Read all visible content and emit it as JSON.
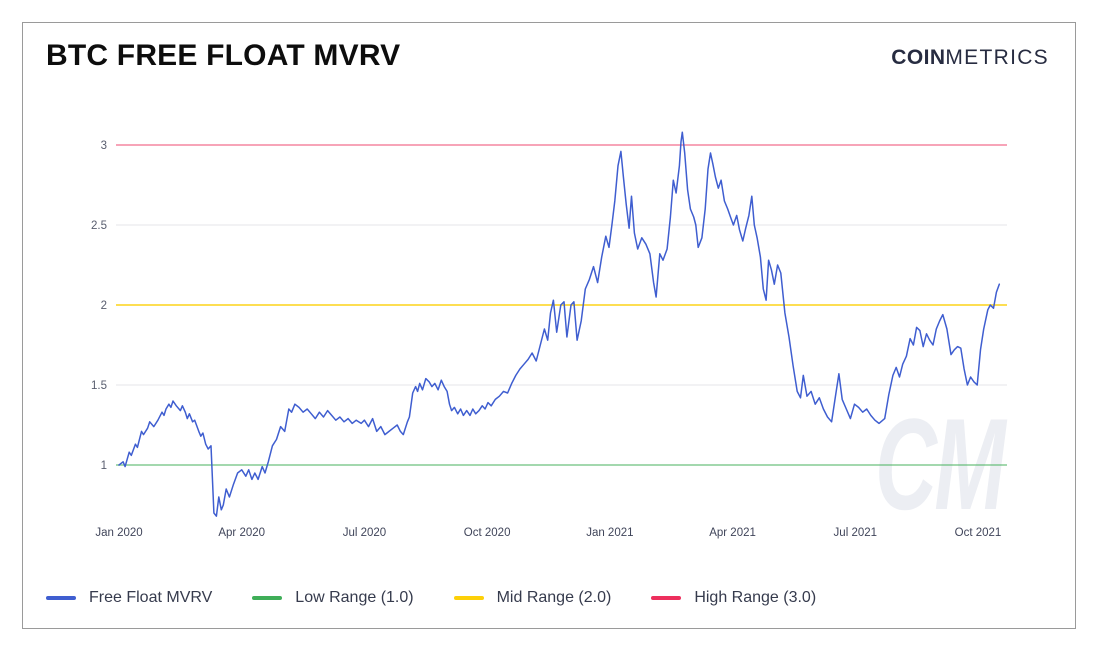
{
  "header": {
    "title": "BTC FREE FLOAT MVRV",
    "brand": {
      "bold": "COIN",
      "light": "METRICS"
    }
  },
  "watermark": "CM",
  "legend": {
    "items": [
      {
        "label": "Free Float MVRV",
        "color": "#3f5ed0"
      },
      {
        "label": "Low Range (1.0)",
        "color": "#3fae58"
      },
      {
        "label": "Mid Range (2.0)",
        "color": "#fdd008"
      },
      {
        "label": "High Range (3.0)",
        "color": "#ed2f5d"
      }
    ]
  },
  "chart_data": {
    "type": "line",
    "title": "BTC FREE FLOAT MVRV",
    "xlabel": "",
    "ylabel": "",
    "grid": "horizontal",
    "legend_position": "bottom",
    "x_axis": {
      "unit": "months since Jan 2020",
      "range": [
        0,
        21.6
      ],
      "ticks": [
        {
          "t": 0,
          "label": "Jan 2020"
        },
        {
          "t": 3,
          "label": "Apr 2020"
        },
        {
          "t": 6,
          "label": "Jul 2020"
        },
        {
          "t": 9,
          "label": "Oct 2020"
        },
        {
          "t": 12,
          "label": "Jan 2021"
        },
        {
          "t": 15,
          "label": "Apr 2021"
        },
        {
          "t": 18,
          "label": "Jul 2021"
        },
        {
          "t": 21,
          "label": "Oct 2021"
        }
      ]
    },
    "y_axis": {
      "ticks": [
        1,
        1.5,
        2,
        2.5,
        3
      ],
      "range": [
        0.62,
        3.15
      ]
    },
    "ref_lines": [
      {
        "name": "Low Range",
        "value": 1.0,
        "color": "#3fae58",
        "chart_opacity": 0.55
      },
      {
        "name": "Mid Range",
        "value": 2.0,
        "color": "#fdd008",
        "chart_opacity": 0.8
      },
      {
        "name": "High Range",
        "value": 3.0,
        "color": "#ed2f5d",
        "chart_opacity": 0.5
      }
    ],
    "series": [
      {
        "name": "Free Float MVRV",
        "color": "#3f5ed0",
        "points": [
          [
            0,
            1.0
          ],
          [
            0.1,
            1.02
          ],
          [
            0.15,
            0.99
          ],
          [
            0.25,
            1.08
          ],
          [
            0.3,
            1.06
          ],
          [
            0.4,
            1.13
          ],
          [
            0.45,
            1.11
          ],
          [
            0.55,
            1.21
          ],
          [
            0.6,
            1.19
          ],
          [
            0.7,
            1.23
          ],
          [
            0.75,
            1.27
          ],
          [
            0.85,
            1.24
          ],
          [
            0.95,
            1.28
          ],
          [
            1.05,
            1.33
          ],
          [
            1.1,
            1.31
          ],
          [
            1.15,
            1.35
          ],
          [
            1.22,
            1.38
          ],
          [
            1.27,
            1.36
          ],
          [
            1.32,
            1.4
          ],
          [
            1.4,
            1.37
          ],
          [
            1.5,
            1.34
          ],
          [
            1.55,
            1.37
          ],
          [
            1.62,
            1.33
          ],
          [
            1.67,
            1.29
          ],
          [
            1.72,
            1.32
          ],
          [
            1.8,
            1.27
          ],
          [
            1.85,
            1.28
          ],
          [
            1.95,
            1.21
          ],
          [
            2,
            1.18
          ],
          [
            2.05,
            1.2
          ],
          [
            2.12,
            1.13
          ],
          [
            2.18,
            1.1
          ],
          [
            2.25,
            1.12
          ],
          [
            2.32,
            0.7
          ],
          [
            2.38,
            0.68
          ],
          [
            2.44,
            0.8
          ],
          [
            2.5,
            0.72
          ],
          [
            2.55,
            0.75
          ],
          [
            2.62,
            0.85
          ],
          [
            2.7,
            0.8
          ],
          [
            2.8,
            0.88
          ],
          [
            2.9,
            0.95
          ],
          [
            3,
            0.97
          ],
          [
            3.1,
            0.93
          ],
          [
            3.17,
            0.97
          ],
          [
            3.25,
            0.91
          ],
          [
            3.32,
            0.95
          ],
          [
            3.4,
            0.91
          ],
          [
            3.5,
            0.99
          ],
          [
            3.57,
            0.95
          ],
          [
            3.65,
            1.02
          ],
          [
            3.75,
            1.12
          ],
          [
            3.85,
            1.16
          ],
          [
            3.95,
            1.24
          ],
          [
            4.05,
            1.21
          ],
          [
            4.15,
            1.35
          ],
          [
            4.22,
            1.33
          ],
          [
            4.3,
            1.38
          ],
          [
            4.4,
            1.36
          ],
          [
            4.5,
            1.33
          ],
          [
            4.6,
            1.35
          ],
          [
            4.7,
            1.32
          ],
          [
            4.8,
            1.29
          ],
          [
            4.9,
            1.33
          ],
          [
            5,
            1.3
          ],
          [
            5.1,
            1.34
          ],
          [
            5.2,
            1.31
          ],
          [
            5.3,
            1.28
          ],
          [
            5.4,
            1.3
          ],
          [
            5.5,
            1.27
          ],
          [
            5.6,
            1.29
          ],
          [
            5.7,
            1.26
          ],
          [
            5.8,
            1.28
          ],
          [
            5.92,
            1.26
          ],
          [
            6,
            1.28
          ],
          [
            6.1,
            1.24
          ],
          [
            6.2,
            1.29
          ],
          [
            6.3,
            1.21
          ],
          [
            6.4,
            1.24
          ],
          [
            6.5,
            1.19
          ],
          [
            6.6,
            1.21
          ],
          [
            6.7,
            1.23
          ],
          [
            6.8,
            1.25
          ],
          [
            6.88,
            1.21
          ],
          [
            6.95,
            1.19
          ],
          [
            7.05,
            1.27
          ],
          [
            7.1,
            1.3
          ],
          [
            7.18,
            1.45
          ],
          [
            7.25,
            1.49
          ],
          [
            7.3,
            1.46
          ],
          [
            7.35,
            1.51
          ],
          [
            7.42,
            1.47
          ],
          [
            7.5,
            1.54
          ],
          [
            7.58,
            1.52
          ],
          [
            7.65,
            1.49
          ],
          [
            7.72,
            1.51
          ],
          [
            7.8,
            1.47
          ],
          [
            7.88,
            1.53
          ],
          [
            7.95,
            1.49
          ],
          [
            8.02,
            1.46
          ],
          [
            8.08,
            1.38
          ],
          [
            8.13,
            1.34
          ],
          [
            8.2,
            1.36
          ],
          [
            8.28,
            1.32
          ],
          [
            8.35,
            1.35
          ],
          [
            8.42,
            1.31
          ],
          [
            8.5,
            1.34
          ],
          [
            8.58,
            1.31
          ],
          [
            8.65,
            1.35
          ],
          [
            8.72,
            1.32
          ],
          [
            8.8,
            1.34
          ],
          [
            8.88,
            1.37
          ],
          [
            8.95,
            1.35
          ],
          [
            9.02,
            1.39
          ],
          [
            9.1,
            1.37
          ],
          [
            9.2,
            1.41
          ],
          [
            9.3,
            1.43
          ],
          [
            9.4,
            1.46
          ],
          [
            9.5,
            1.45
          ],
          [
            9.6,
            1.51
          ],
          [
            9.7,
            1.56
          ],
          [
            9.8,
            1.6
          ],
          [
            9.9,
            1.63
          ],
          [
            10,
            1.66
          ],
          [
            10.1,
            1.7
          ],
          [
            10.2,
            1.65
          ],
          [
            10.3,
            1.75
          ],
          [
            10.4,
            1.85
          ],
          [
            10.48,
            1.78
          ],
          [
            10.55,
            1.95
          ],
          [
            10.62,
            2.03
          ],
          [
            10.7,
            1.83
          ],
          [
            10.8,
            2.0
          ],
          [
            10.88,
            2.02
          ],
          [
            10.95,
            1.8
          ],
          [
            11.05,
            2.0
          ],
          [
            11.12,
            2.02
          ],
          [
            11.2,
            1.78
          ],
          [
            11.3,
            1.9
          ],
          [
            11.4,
            2.1
          ],
          [
            11.5,
            2.16
          ],
          [
            11.6,
            2.24
          ],
          [
            11.7,
            2.14
          ],
          [
            11.8,
            2.3
          ],
          [
            11.9,
            2.43
          ],
          [
            11.98,
            2.36
          ],
          [
            12.05,
            2.5
          ],
          [
            12.12,
            2.65
          ],
          [
            12.2,
            2.87
          ],
          [
            12.27,
            2.96
          ],
          [
            12.33,
            2.8
          ],
          [
            12.4,
            2.63
          ],
          [
            12.47,
            2.48
          ],
          [
            12.53,
            2.68
          ],
          [
            12.6,
            2.45
          ],
          [
            12.68,
            2.35
          ],
          [
            12.78,
            2.42
          ],
          [
            12.88,
            2.38
          ],
          [
            12.98,
            2.32
          ],
          [
            13.07,
            2.14
          ],
          [
            13.13,
            2.05
          ],
          [
            13.22,
            2.32
          ],
          [
            13.3,
            2.28
          ],
          [
            13.4,
            2.35
          ],
          [
            13.48,
            2.55
          ],
          [
            13.55,
            2.78
          ],
          [
            13.62,
            2.7
          ],
          [
            13.7,
            2.87
          ],
          [
            13.74,
            3.02
          ],
          [
            13.77,
            3.08
          ],
          [
            13.83,
            2.95
          ],
          [
            13.9,
            2.72
          ],
          [
            13.97,
            2.6
          ],
          [
            14.05,
            2.55
          ],
          [
            14.1,
            2.5
          ],
          [
            14.16,
            2.36
          ],
          [
            14.25,
            2.42
          ],
          [
            14.33,
            2.6
          ],
          [
            14.4,
            2.85
          ],
          [
            14.46,
            2.95
          ],
          [
            14.52,
            2.88
          ],
          [
            14.58,
            2.8
          ],
          [
            14.65,
            2.73
          ],
          [
            14.72,
            2.78
          ],
          [
            14.8,
            2.65
          ],
          [
            14.88,
            2.6
          ],
          [
            14.95,
            2.55
          ],
          [
            15.02,
            2.5
          ],
          [
            15.1,
            2.56
          ],
          [
            15.17,
            2.47
          ],
          [
            15.25,
            2.4
          ],
          [
            15.32,
            2.48
          ],
          [
            15.4,
            2.56
          ],
          [
            15.47,
            2.68
          ],
          [
            15.53,
            2.5
          ],
          [
            15.6,
            2.42
          ],
          [
            15.68,
            2.3
          ],
          [
            15.75,
            2.1
          ],
          [
            15.82,
            2.03
          ],
          [
            15.88,
            2.28
          ],
          [
            15.95,
            2.22
          ],
          [
            16.02,
            2.13
          ],
          [
            16.1,
            2.25
          ],
          [
            16.18,
            2.2
          ],
          [
            16.28,
            1.95
          ],
          [
            16.38,
            1.8
          ],
          [
            16.48,
            1.62
          ],
          [
            16.58,
            1.46
          ],
          [
            16.66,
            1.42
          ],
          [
            16.73,
            1.56
          ],
          [
            16.82,
            1.43
          ],
          [
            16.92,
            1.46
          ],
          [
            17.02,
            1.38
          ],
          [
            17.12,
            1.42
          ],
          [
            17.22,
            1.35
          ],
          [
            17.32,
            1.3
          ],
          [
            17.42,
            1.27
          ],
          [
            17.52,
            1.44
          ],
          [
            17.6,
            1.57
          ],
          [
            17.68,
            1.41
          ],
          [
            17.78,
            1.35
          ],
          [
            17.88,
            1.29
          ],
          [
            17.98,
            1.38
          ],
          [
            18.08,
            1.36
          ],
          [
            18.18,
            1.33
          ],
          [
            18.28,
            1.35
          ],
          [
            18.38,
            1.31
          ],
          [
            18.48,
            1.28
          ],
          [
            18.58,
            1.26
          ],
          [
            18.72,
            1.29
          ],
          [
            18.82,
            1.44
          ],
          [
            18.92,
            1.56
          ],
          [
            19,
            1.61
          ],
          [
            19.08,
            1.55
          ],
          [
            19.16,
            1.63
          ],
          [
            19.25,
            1.68
          ],
          [
            19.34,
            1.79
          ],
          [
            19.42,
            1.75
          ],
          [
            19.5,
            1.86
          ],
          [
            19.58,
            1.84
          ],
          [
            19.66,
            1.74
          ],
          [
            19.74,
            1.82
          ],
          [
            19.82,
            1.78
          ],
          [
            19.9,
            1.75
          ],
          [
            19.98,
            1.85
          ],
          [
            20.06,
            1.9
          ],
          [
            20.14,
            1.94
          ],
          [
            20.24,
            1.85
          ],
          [
            20.34,
            1.69
          ],
          [
            20.42,
            1.72
          ],
          [
            20.5,
            1.74
          ],
          [
            20.58,
            1.73
          ],
          [
            20.66,
            1.6
          ],
          [
            20.74,
            1.5
          ],
          [
            20.82,
            1.55
          ],
          [
            20.9,
            1.52
          ],
          [
            20.98,
            1.5
          ],
          [
            21.06,
            1.72
          ],
          [
            21.14,
            1.85
          ],
          [
            21.24,
            1.97
          ],
          [
            21.3,
            2.0
          ],
          [
            21.38,
            1.98
          ],
          [
            21.45,
            2.08
          ],
          [
            21.52,
            2.13
          ]
        ]
      }
    ]
  }
}
